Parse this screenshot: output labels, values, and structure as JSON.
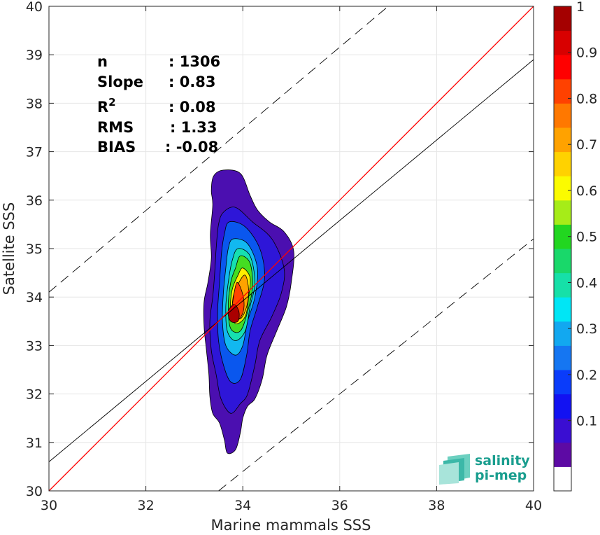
{
  "chart_data": {
    "type": "contour",
    "xlabel": "Marine mammals SSS",
    "ylabel": "Satellite SSS",
    "xlim": [
      30,
      40
    ],
    "ylim": [
      30,
      40
    ],
    "x_ticks": [
      30,
      32,
      34,
      36,
      38,
      40
    ],
    "y_ticks": [
      30,
      31,
      32,
      33,
      34,
      35,
      36,
      37,
      38,
      39,
      40
    ],
    "grid": true,
    "stats": [
      {
        "label": "n",
        "sep": ":",
        "value": "1306"
      },
      {
        "label": "Slope",
        "sep": ":",
        "value": "0.83"
      },
      {
        "label": "R",
        "sup": "2",
        "sep": ":",
        "value": "0.08"
      },
      {
        "label": "RMS",
        "sep": ":",
        "value": "1.33"
      },
      {
        "label": "BIAS",
        "sep": ":",
        "value": "-0.08"
      }
    ],
    "lines": {
      "one_to_one": {
        "x": [
          30,
          40
        ],
        "y": [
          30,
          40
        ],
        "color": "#ff0000"
      },
      "fit": {
        "x": [
          30,
          40
        ],
        "y": [
          30.6,
          38.9
        ],
        "color": "#000000"
      },
      "upper_dashed": {
        "x": [
          30,
          37
        ],
        "y": [
          34.1,
          40
        ],
        "color": "#000000"
      },
      "lower_dashed": {
        "x": [
          33.5,
          40
        ],
        "y": [
          30,
          35.2
        ],
        "color": "#000000"
      }
    },
    "contours": [
      {
        "level": 0.05,
        "color": "#4b0fb0",
        "points": [
          [
            33.4,
            36.5
          ],
          [
            33.6,
            36.62
          ],
          [
            33.95,
            36.55
          ],
          [
            34.15,
            36.1
          ],
          [
            34.3,
            35.8
          ],
          [
            34.55,
            35.55
          ],
          [
            34.85,
            35.35
          ],
          [
            35.05,
            34.95
          ],
          [
            35.0,
            34.3
          ],
          [
            34.9,
            33.8
          ],
          [
            34.7,
            33.3
          ],
          [
            34.5,
            32.8
          ],
          [
            34.4,
            32.3
          ],
          [
            34.25,
            31.9
          ],
          [
            34.1,
            31.75
          ],
          [
            34.0,
            31.5
          ],
          [
            33.95,
            31.2
          ],
          [
            33.85,
            30.85
          ],
          [
            33.68,
            30.78
          ],
          [
            33.62,
            31.05
          ],
          [
            33.52,
            31.4
          ],
          [
            33.38,
            31.6
          ],
          [
            33.32,
            31.95
          ],
          [
            33.3,
            32.4
          ],
          [
            33.25,
            32.9
          ],
          [
            33.2,
            33.4
          ],
          [
            33.2,
            33.9
          ],
          [
            33.28,
            34.3
          ],
          [
            33.35,
            34.8
          ],
          [
            33.33,
            35.3
          ],
          [
            33.38,
            35.9
          ],
          [
            33.35,
            36.2
          ]
        ]
      },
      {
        "level": 0.15,
        "color": "#2e16d8",
        "points": [
          [
            33.6,
            35.75
          ],
          [
            33.85,
            35.85
          ],
          [
            34.2,
            35.55
          ],
          [
            34.6,
            35.2
          ],
          [
            34.85,
            34.6
          ],
          [
            34.8,
            34.1
          ],
          [
            34.6,
            33.6
          ],
          [
            34.35,
            33.1
          ],
          [
            34.25,
            32.6
          ],
          [
            34.1,
            32.0
          ],
          [
            33.95,
            31.8
          ],
          [
            33.75,
            31.6
          ],
          [
            33.55,
            31.9
          ],
          [
            33.45,
            32.4
          ],
          [
            33.35,
            32.9
          ],
          [
            33.32,
            33.5
          ],
          [
            33.38,
            34.0
          ],
          [
            33.42,
            34.5
          ],
          [
            33.45,
            35.0
          ],
          [
            33.5,
            35.5
          ]
        ]
      },
      {
        "level": 0.25,
        "color": "#0a57ee",
        "points": [
          [
            33.72,
            35.55
          ],
          [
            34.05,
            35.45
          ],
          [
            34.35,
            35.0
          ],
          [
            34.45,
            34.4
          ],
          [
            34.3,
            33.8
          ],
          [
            34.15,
            33.3
          ],
          [
            34.08,
            32.8
          ],
          [
            33.95,
            32.3
          ],
          [
            33.75,
            32.25
          ],
          [
            33.6,
            32.6
          ],
          [
            33.5,
            33.1
          ],
          [
            33.48,
            33.7
          ],
          [
            33.52,
            34.3
          ],
          [
            33.56,
            34.9
          ],
          [
            33.62,
            35.3
          ]
        ]
      },
      {
        "level": 0.35,
        "color": "#12b8f0",
        "points": [
          [
            33.8,
            35.2
          ],
          [
            34.1,
            35.1
          ],
          [
            34.3,
            34.6
          ],
          [
            34.25,
            34.0
          ],
          [
            34.1,
            33.5
          ],
          [
            34.0,
            33.0
          ],
          [
            33.85,
            32.8
          ],
          [
            33.65,
            33.0
          ],
          [
            33.58,
            33.5
          ],
          [
            33.6,
            34.1
          ],
          [
            33.65,
            34.6
          ],
          [
            33.7,
            35.0
          ]
        ]
      },
      {
        "level": 0.45,
        "color": "#16e0b0",
        "points": [
          [
            33.9,
            35.0
          ],
          [
            34.15,
            34.85
          ],
          [
            34.25,
            34.3
          ],
          [
            34.15,
            33.8
          ],
          [
            34.05,
            33.3
          ],
          [
            33.85,
            33.1
          ],
          [
            33.68,
            33.3
          ],
          [
            33.65,
            33.8
          ],
          [
            33.7,
            34.3
          ],
          [
            33.78,
            34.75
          ]
        ]
      },
      {
        "level": 0.55,
        "color": "#44dd22",
        "points": [
          [
            33.95,
            34.85
          ],
          [
            34.15,
            34.7
          ],
          [
            34.2,
            34.2
          ],
          [
            34.1,
            33.7
          ],
          [
            33.95,
            33.3
          ],
          [
            33.75,
            33.35
          ],
          [
            33.7,
            33.8
          ],
          [
            33.75,
            34.3
          ],
          [
            33.85,
            34.6
          ]
        ]
      },
      {
        "level": 0.65,
        "color": "#ffee00",
        "points": [
          [
            34.0,
            34.6
          ],
          [
            34.15,
            34.4
          ],
          [
            34.12,
            34.0
          ],
          [
            34.05,
            33.6
          ],
          [
            33.85,
            33.45
          ],
          [
            33.75,
            33.75
          ],
          [
            33.78,
            34.15
          ],
          [
            33.9,
            34.45
          ]
        ]
      },
      {
        "level": 0.75,
        "color": "#ffa200",
        "points": [
          [
            34.05,
            34.45
          ],
          [
            34.12,
            34.15
          ],
          [
            34.08,
            33.8
          ],
          [
            33.95,
            33.55
          ],
          [
            33.8,
            33.65
          ],
          [
            33.8,
            34.0
          ],
          [
            33.92,
            34.3
          ]
        ]
      },
      {
        "level": 0.85,
        "color": "#ff4400",
        "points": [
          [
            33.88,
            34.3
          ],
          [
            34.0,
            34.05
          ],
          [
            34.02,
            33.75
          ],
          [
            33.92,
            33.55
          ],
          [
            33.78,
            33.65
          ],
          [
            33.8,
            33.95
          ]
        ]
      },
      {
        "level": 0.95,
        "color": "#aa0000",
        "points": [
          [
            33.82,
            33.85
          ],
          [
            33.92,
            33.7
          ],
          [
            33.9,
            33.5
          ],
          [
            33.75,
            33.5
          ],
          [
            33.7,
            33.7
          ]
        ]
      }
    ]
  },
  "colorbar": {
    "colors": [
      "#ffffff",
      "#5d0aa4",
      "#3a0ed2",
      "#1212f2",
      "#0a3cfa",
      "#1576f2",
      "#12a8f0",
      "#00e6f5",
      "#16e0a8",
      "#19d86a",
      "#22d620",
      "#a6ec18",
      "#fbfb00",
      "#ffd200",
      "#ffa200",
      "#ff7800",
      "#ff4100",
      "#ff0000",
      "#d80000",
      "#a40000"
    ],
    "ticks": [
      "0.1",
      "0.2",
      "0.3",
      "0.4",
      "0.5",
      "0.6",
      "0.7",
      "0.8",
      "0.9",
      "1"
    ]
  },
  "logo": {
    "line1": "salinity",
    "line2": "pi-mep"
  }
}
